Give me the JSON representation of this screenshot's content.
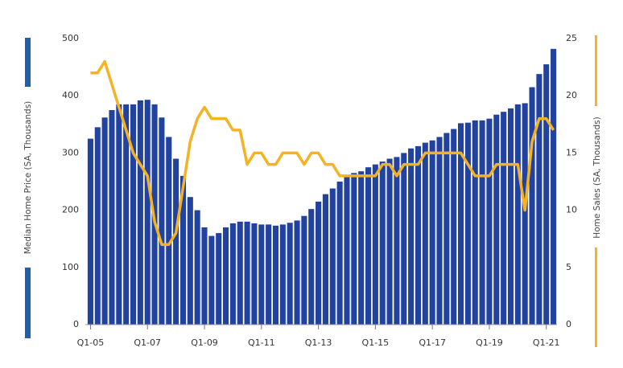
{
  "chart_data": {
    "type": "bar_line",
    "ylabel": "Median Home Price (SA, Thousands)",
    "y2label": "Home Sales (SA, Thousands)",
    "categories": [
      "Q1-05",
      null,
      null,
      null,
      null,
      null,
      null,
      null,
      "Q1-07",
      null,
      null,
      null,
      null,
      null,
      null,
      null,
      "Q1-09",
      null,
      null,
      null,
      null,
      null,
      null,
      null,
      "Q1-11",
      null,
      null,
      null,
      null,
      null,
      null,
      null,
      "Q1-13",
      null,
      null,
      null,
      null,
      null,
      null,
      null,
      "Q1-15",
      null,
      null,
      null,
      null,
      null,
      null,
      null,
      "Q1-17",
      null,
      null,
      null,
      null,
      null,
      null,
      null,
      "Q1-19",
      null,
      null,
      null,
      null,
      null,
      null,
      null,
      "Q1-21",
      null
    ],
    "series": [
      {
        "type": "bar",
        "color": "#2242a0",
        "values": [
          325,
          345,
          362,
          375,
          385,
          385,
          385,
          392,
          393,
          385,
          362,
          328,
          290,
          260,
          223,
          200,
          170,
          155,
          160,
          170,
          177,
          180,
          180,
          177,
          175,
          175,
          173,
          175,
          178,
          182,
          190,
          202,
          215,
          228,
          238,
          250,
          260,
          265,
          268,
          275,
          280,
          285,
          290,
          293,
          300,
          308,
          312,
          318,
          322,
          328,
          335,
          342,
          352,
          353,
          357,
          357,
          360,
          367,
          372,
          378,
          385,
          387,
          415,
          438,
          455,
          482
        ]
      },
      {
        "type": "line",
        "axis": "y2",
        "color": "#f5b324",
        "values": [
          22,
          22,
          23,
          21,
          19,
          17,
          15,
          14,
          13,
          9,
          7,
          7,
          8,
          12,
          16,
          18,
          19,
          18,
          18,
          18,
          17,
          17,
          14,
          15,
          15,
          14,
          14,
          15,
          15,
          15,
          14,
          15,
          15,
          14,
          14,
          13,
          13,
          13,
          13,
          13,
          13,
          14,
          14,
          13,
          14,
          14,
          14,
          15,
          15,
          15,
          15,
          15,
          15,
          14,
          13,
          13,
          13,
          14,
          14,
          14,
          14,
          10,
          16,
          18,
          18,
          17
        ]
      }
    ],
    "ylim": [
      0,
      500
    ],
    "yticks": [
      0,
      100,
      200,
      300,
      400,
      500
    ],
    "y2lim": [
      0,
      25
    ],
    "y2ticks": [
      0,
      5,
      10,
      15,
      20,
      25
    ],
    "grid": false
  }
}
